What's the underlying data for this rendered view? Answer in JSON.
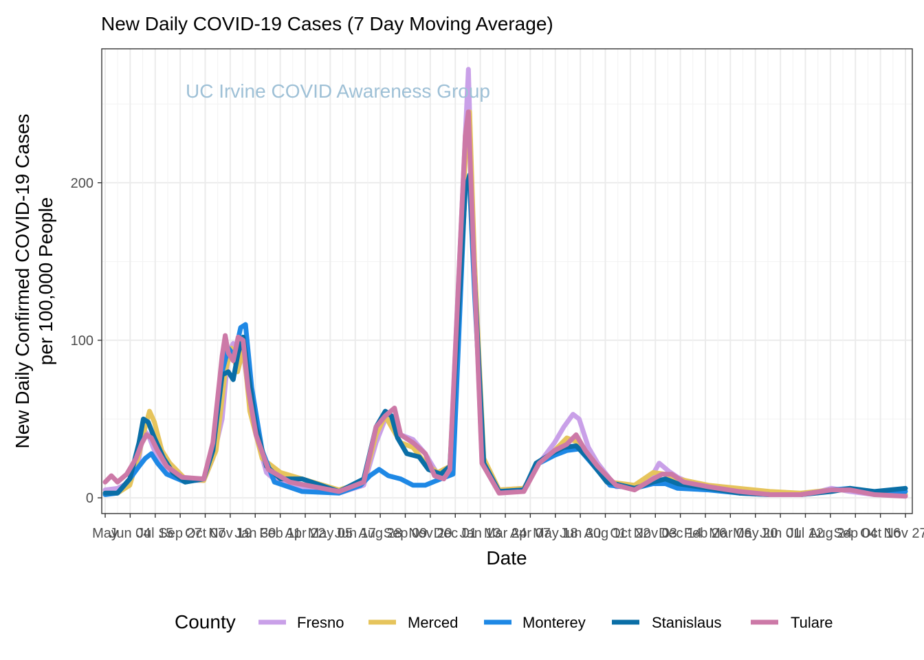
{
  "chart_data": {
    "type": "line",
    "title": "New   Daily   COVID-19     Cases   (7  Day  Moving   Average)",
    "annotation": "UC Irvine COVID Awareness Group",
    "xlabel": "Date",
    "ylabel_line1": "New Daily Confirmed COVID-19 Cases",
    "ylabel_line2": "per 100,000 People",
    "ylim": [
      -10,
      285
    ],
    "y_ticks": [
      0,
      100,
      200
    ],
    "y_tick_labels": [
      "0",
      "100",
      "200"
    ],
    "x_range": [
      0,
      1300
    ],
    "x_tick_labels": [
      "May",
      "Jun 04",
      "Jul 15",
      "Sep 27",
      "Oct 07",
      "Nov 19",
      "Jan 30",
      "Feb 11",
      "Apr 22",
      "May 05",
      "Jun 17",
      "Aug 28",
      "Sep 09",
      "Nov 20",
      "Dec 01",
      "Jan 13",
      "Mar 24",
      "Apr 07",
      "May 18",
      "Jun 30",
      "Aug 11",
      "Oct 22",
      "Nov 03",
      "Dec 14",
      "Feb 26",
      "Mar 06",
      "May 20",
      "Jun 01",
      "Jul 12",
      "Aug 24",
      "Sep 04",
      "Oct 16",
      "Nov 27"
    ],
    "grid": true,
    "legend": {
      "title": "County",
      "position": "bottom"
    },
    "series": [
      {
        "name": "Fresno",
        "color": "#c9a0e8",
        "points": [
          [
            0,
            5
          ],
          [
            20,
            6
          ],
          [
            40,
            10
          ],
          [
            55,
            25
          ],
          [
            60,
            38
          ],
          [
            65,
            42
          ],
          [
            70,
            40
          ],
          [
            78,
            32
          ],
          [
            90,
            22
          ],
          [
            105,
            15
          ],
          [
            130,
            11
          ],
          [
            160,
            11
          ],
          [
            175,
            25
          ],
          [
            190,
            50
          ],
          [
            200,
            92
          ],
          [
            208,
            98
          ],
          [
            215,
            88
          ],
          [
            222,
            100
          ],
          [
            230,
            75
          ],
          [
            245,
            40
          ],
          [
            262,
            16
          ],
          [
            280,
            10
          ],
          [
            320,
            6
          ],
          [
            380,
            3
          ],
          [
            420,
            8
          ],
          [
            440,
            35
          ],
          [
            455,
            50
          ],
          [
            470,
            52
          ],
          [
            480,
            40
          ],
          [
            500,
            37
          ],
          [
            520,
            28
          ],
          [
            540,
            15
          ],
          [
            560,
            20
          ],
          [
            585,
            230
          ],
          [
            590,
            272
          ],
          [
            598,
            160
          ],
          [
            612,
            25
          ],
          [
            640,
            5
          ],
          [
            680,
            6
          ],
          [
            705,
            22
          ],
          [
            730,
            35
          ],
          [
            745,
            45
          ],
          [
            760,
            53
          ],
          [
            770,
            50
          ],
          [
            785,
            32
          ],
          [
            800,
            22
          ],
          [
            830,
            7
          ],
          [
            880,
            8
          ],
          [
            900,
            22
          ],
          [
            915,
            17
          ],
          [
            930,
            13
          ],
          [
            960,
            8
          ],
          [
            1000,
            5
          ],
          [
            1050,
            3
          ],
          [
            1100,
            2
          ],
          [
            1150,
            3
          ],
          [
            1180,
            6
          ],
          [
            1210,
            4
          ],
          [
            1250,
            2
          ],
          [
            1300,
            2
          ]
        ]
      },
      {
        "name": "Merced",
        "color": "#e6c45c",
        "points": [
          [
            0,
            3
          ],
          [
            20,
            3
          ],
          [
            40,
            8
          ],
          [
            55,
            28
          ],
          [
            65,
            45
          ],
          [
            72,
            55
          ],
          [
            80,
            48
          ],
          [
            92,
            30
          ],
          [
            105,
            22
          ],
          [
            130,
            12
          ],
          [
            160,
            11
          ],
          [
            180,
            30
          ],
          [
            195,
            80
          ],
          [
            205,
            95
          ],
          [
            215,
            80
          ],
          [
            225,
            95
          ],
          [
            235,
            55
          ],
          [
            255,
            25
          ],
          [
            285,
            16
          ],
          [
            320,
            12
          ],
          [
            380,
            5
          ],
          [
            420,
            10
          ],
          [
            440,
            40
          ],
          [
            455,
            52
          ],
          [
            465,
            45
          ],
          [
            480,
            35
          ],
          [
            500,
            32
          ],
          [
            520,
            22
          ],
          [
            540,
            16
          ],
          [
            560,
            20
          ],
          [
            585,
            215
          ],
          [
            592,
            245
          ],
          [
            600,
            150
          ],
          [
            615,
            25
          ],
          [
            640,
            5
          ],
          [
            680,
            6
          ],
          [
            705,
            22
          ],
          [
            730,
            30
          ],
          [
            750,
            38
          ],
          [
            770,
            35
          ],
          [
            790,
            25
          ],
          [
            820,
            10
          ],
          [
            860,
            8
          ],
          [
            890,
            16
          ],
          [
            910,
            15
          ],
          [
            930,
            12
          ],
          [
            980,
            8
          ],
          [
            1030,
            6
          ],
          [
            1080,
            4
          ],
          [
            1130,
            3
          ],
          [
            1180,
            5
          ],
          [
            1210,
            5
          ],
          [
            1250,
            3
          ],
          [
            1300,
            2
          ]
        ]
      },
      {
        "name": "Monterey",
        "color": "#1e88e5",
        "points": [
          [
            0,
            2
          ],
          [
            20,
            3
          ],
          [
            40,
            12
          ],
          [
            55,
            20
          ],
          [
            65,
            25
          ],
          [
            75,
            28
          ],
          [
            85,
            22
          ],
          [
            100,
            15
          ],
          [
            130,
            10
          ],
          [
            160,
            12
          ],
          [
            175,
            32
          ],
          [
            190,
            80
          ],
          [
            200,
            95
          ],
          [
            210,
            90
          ],
          [
            220,
            108
          ],
          [
            228,
            110
          ],
          [
            238,
            70
          ],
          [
            255,
            30
          ],
          [
            275,
            10
          ],
          [
            320,
            4
          ],
          [
            380,
            3
          ],
          [
            415,
            8
          ],
          [
            430,
            14
          ],
          [
            445,
            18
          ],
          [
            460,
            14
          ],
          [
            480,
            12
          ],
          [
            500,
            8
          ],
          [
            520,
            8
          ],
          [
            545,
            12
          ],
          [
            565,
            15
          ],
          [
            585,
            200
          ],
          [
            592,
            200
          ],
          [
            600,
            130
          ],
          [
            615,
            20
          ],
          [
            640,
            4
          ],
          [
            680,
            5
          ],
          [
            705,
            22
          ],
          [
            730,
            27
          ],
          [
            750,
            30
          ],
          [
            770,
            31
          ],
          [
            790,
            22
          ],
          [
            820,
            8
          ],
          [
            860,
            6
          ],
          [
            890,
            9
          ],
          [
            910,
            9
          ],
          [
            930,
            6
          ],
          [
            980,
            5
          ],
          [
            1030,
            3
          ],
          [
            1080,
            2
          ],
          [
            1130,
            2
          ],
          [
            1180,
            5
          ],
          [
            1210,
            6
          ],
          [
            1250,
            3
          ],
          [
            1300,
            4
          ]
        ]
      },
      {
        "name": "Stanislaus",
        "color": "#0a6ea6",
        "points": [
          [
            0,
            3
          ],
          [
            20,
            3
          ],
          [
            40,
            12
          ],
          [
            55,
            35
          ],
          [
            62,
            50
          ],
          [
            70,
            48
          ],
          [
            80,
            38
          ],
          [
            95,
            25
          ],
          [
            110,
            16
          ],
          [
            130,
            10
          ],
          [
            160,
            12
          ],
          [
            175,
            30
          ],
          [
            190,
            78
          ],
          [
            200,
            80
          ],
          [
            208,
            75
          ],
          [
            216,
            92
          ],
          [
            224,
            102
          ],
          [
            232,
            80
          ],
          [
            245,
            45
          ],
          [
            262,
            20
          ],
          [
            285,
            12
          ],
          [
            320,
            12
          ],
          [
            380,
            4
          ],
          [
            420,
            12
          ],
          [
            440,
            45
          ],
          [
            455,
            55
          ],
          [
            465,
            52
          ],
          [
            475,
            38
          ],
          [
            490,
            28
          ],
          [
            510,
            26
          ],
          [
            525,
            18
          ],
          [
            545,
            15
          ],
          [
            560,
            20
          ],
          [
            585,
            195
          ],
          [
            592,
            205
          ],
          [
            600,
            140
          ],
          [
            615,
            22
          ],
          [
            640,
            4
          ],
          [
            680,
            5
          ],
          [
            700,
            22
          ],
          [
            725,
            28
          ],
          [
            745,
            32
          ],
          [
            765,
            33
          ],
          [
            785,
            25
          ],
          [
            815,
            10
          ],
          [
            860,
            6
          ],
          [
            890,
            10
          ],
          [
            910,
            12
          ],
          [
            930,
            9
          ],
          [
            980,
            6
          ],
          [
            1030,
            3
          ],
          [
            1080,
            2
          ],
          [
            1130,
            2
          ],
          [
            1180,
            4
          ],
          [
            1210,
            6
          ],
          [
            1250,
            4
          ],
          [
            1300,
            6
          ]
        ]
      },
      {
        "name": "Tulare",
        "color": "#cc79a7",
        "points": [
          [
            0,
            10
          ],
          [
            10,
            14
          ],
          [
            20,
            10
          ],
          [
            35,
            15
          ],
          [
            50,
            25
          ],
          [
            60,
            35
          ],
          [
            67,
            40
          ],
          [
            75,
            38
          ],
          [
            85,
            30
          ],
          [
            100,
            20
          ],
          [
            125,
            13
          ],
          [
            160,
            12
          ],
          [
            175,
            35
          ],
          [
            190,
            90
          ],
          [
            195,
            103
          ],
          [
            200,
            92
          ],
          [
            208,
            87
          ],
          [
            216,
            102
          ],
          [
            224,
            100
          ],
          [
            232,
            70
          ],
          [
            245,
            40
          ],
          [
            265,
            18
          ],
          [
            300,
            10
          ],
          [
            380,
            4
          ],
          [
            420,
            10
          ],
          [
            440,
            45
          ],
          [
            455,
            52
          ],
          [
            470,
            57
          ],
          [
            480,
            40
          ],
          [
            500,
            35
          ],
          [
            520,
            28
          ],
          [
            535,
            14
          ],
          [
            550,
            12
          ],
          [
            560,
            18
          ],
          [
            585,
            230
          ],
          [
            590,
            245
          ],
          [
            598,
            160
          ],
          [
            612,
            22
          ],
          [
            640,
            3
          ],
          [
            680,
            4
          ],
          [
            705,
            22
          ],
          [
            730,
            30
          ],
          [
            750,
            34
          ],
          [
            765,
            40
          ],
          [
            780,
            30
          ],
          [
            800,
            20
          ],
          [
            830,
            8
          ],
          [
            860,
            5
          ],
          [
            890,
            12
          ],
          [
            905,
            15
          ],
          [
            920,
            15
          ],
          [
            940,
            10
          ],
          [
            980,
            7
          ],
          [
            1030,
            4
          ],
          [
            1080,
            2
          ],
          [
            1130,
            2
          ],
          [
            1180,
            5
          ],
          [
            1210,
            5
          ],
          [
            1250,
            2
          ],
          [
            1300,
            1
          ]
        ]
      }
    ]
  }
}
